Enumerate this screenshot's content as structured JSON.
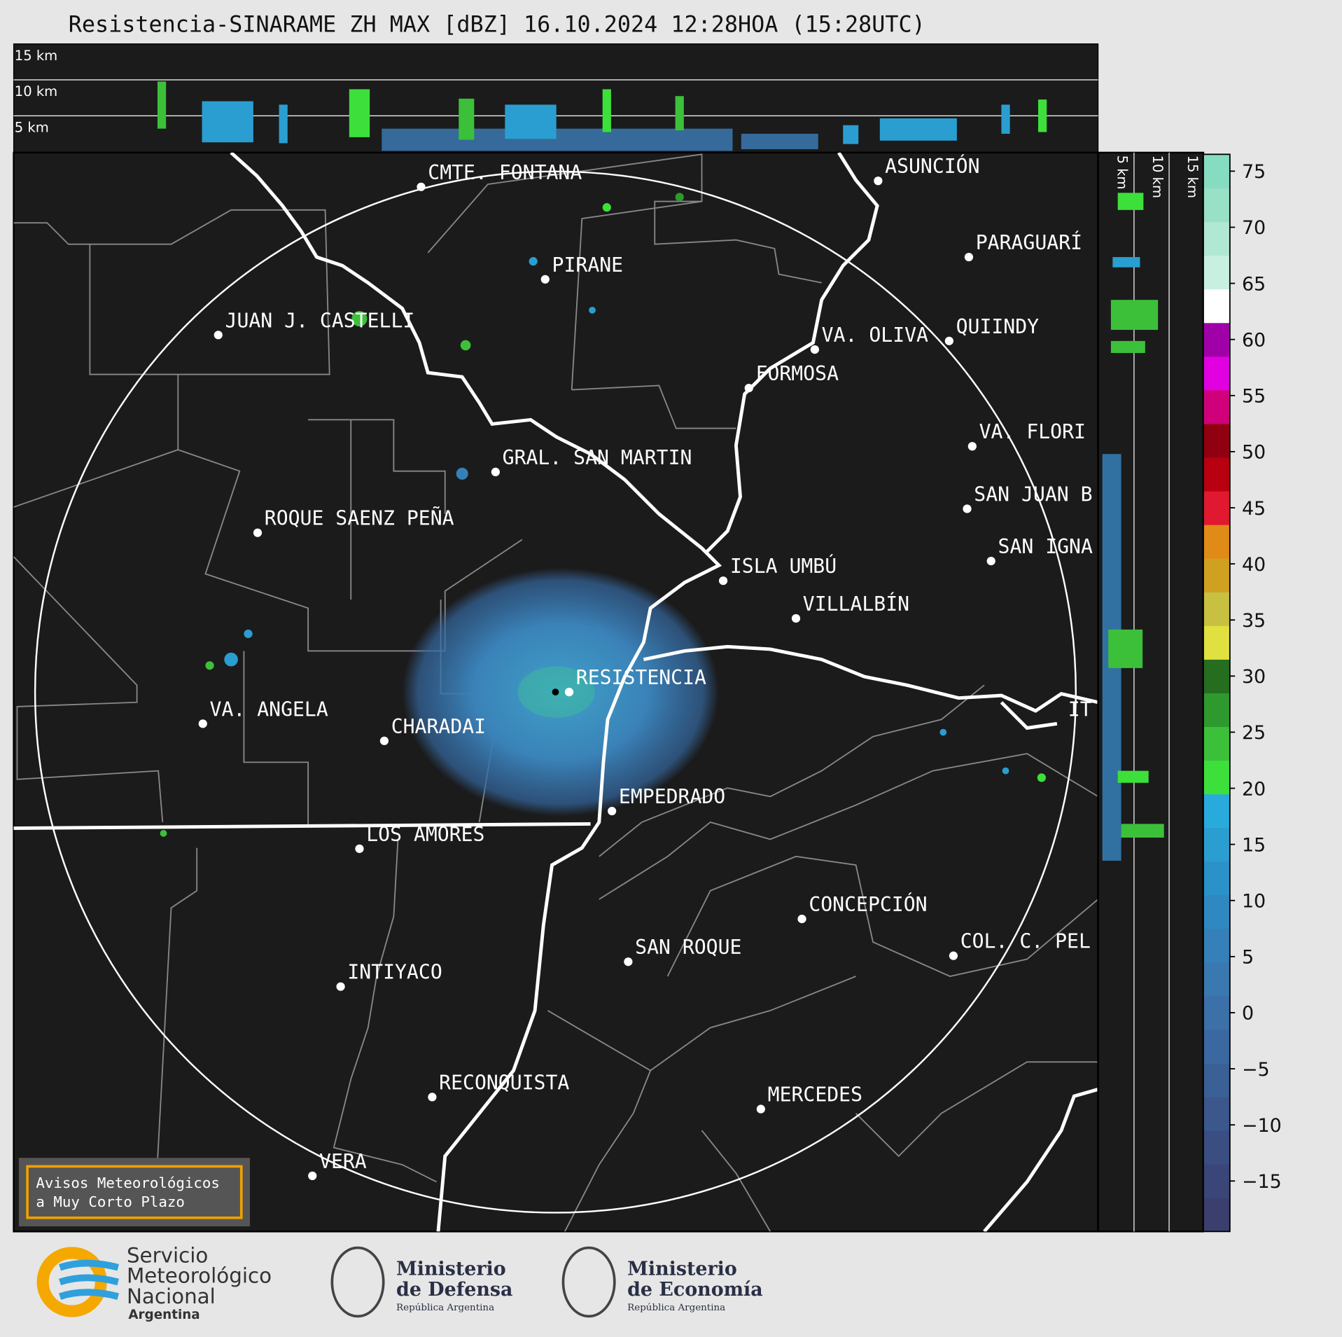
{
  "header": {
    "title": "Resistencia-SINARAME ZH MAX [dBZ] 16.10.2024 12:28HOA (15:28UTC)"
  },
  "top_profile": {
    "altitude_labels": [
      "15 km",
      "10 km",
      "5 km"
    ]
  },
  "side_profile": {
    "altitude_labels": [
      "5 km",
      "10 km",
      "15 km"
    ]
  },
  "cities": [
    "CMTE. FONTANA",
    "PIRANE",
    "JUAN J. CASTELLI",
    "ASUNCIÓN",
    "PARAGUARÍ",
    "VA. OLIVA",
    "QUIINDY",
    "FORMOSA",
    "VA. FLORI",
    "GRAL. SAN MARTIN",
    "SAN JUAN B",
    "ROQUE SAENZ PEÑA",
    "SAN IGNA",
    "ISLA UMBÚ",
    "VILLALBÍN",
    "RESISTENCIA",
    "VA. ANGELA",
    "CHARADAI",
    "IT",
    "EMPEDRADO",
    "LOS AMORES",
    "CONCEPCIÓN",
    "COL. C. PEL",
    "SAN ROQUE",
    "INTIYACO",
    "RECONQUISTA",
    "MERCEDES",
    "VERA"
  ],
  "colorbar": {
    "lim": [
      -19.5,
      76.5
    ],
    "ticks": [
      75,
      70,
      65,
      60,
      55,
      50,
      45,
      40,
      35,
      30,
      25,
      20,
      15,
      10,
      5,
      0,
      {
        "value": -5,
        "label": "−5"
      },
      {
        "value": -10,
        "label": "−10"
      },
      {
        "value": -15,
        "label": "−15"
      }
    ],
    "colors": [
      "#3b3f6e",
      "#3b4678",
      "#3b4e82",
      "#3b578c",
      "#3b6096",
      "#3b68a0",
      "#3b70a8",
      "#3a78b0",
      "#3580b8",
      "#2f88c0",
      "#2a92c8",
      "#2a9ed0",
      "#29aadc",
      "#3de03a",
      "#3cc03a",
      "#2e9a2e",
      "#256e20",
      "#e0e040",
      "#c8c040",
      "#d0a020",
      "#e08a18",
      "#e01830",
      "#b80010",
      "#900010",
      "#d0007a",
      "#e000e0",
      "#a000a8",
      "#ffffff",
      "#c8f0e0",
      "#b0e8d4",
      "#98e0c6",
      "#86dcc0"
    ]
  },
  "notice": {
    "lines": [
      "Avisos Meteorológicos",
      "a Muy Corto Plazo"
    ]
  },
  "logos": {
    "smn": [
      "Servicio",
      "Meteorológico",
      "Nacional",
      "Argentina"
    ],
    "defensa": [
      "Ministerio",
      "de Defensa",
      "República Argentina"
    ],
    "economia": [
      "Ministerio",
      "de Economía",
      "República Argentina"
    ]
  }
}
